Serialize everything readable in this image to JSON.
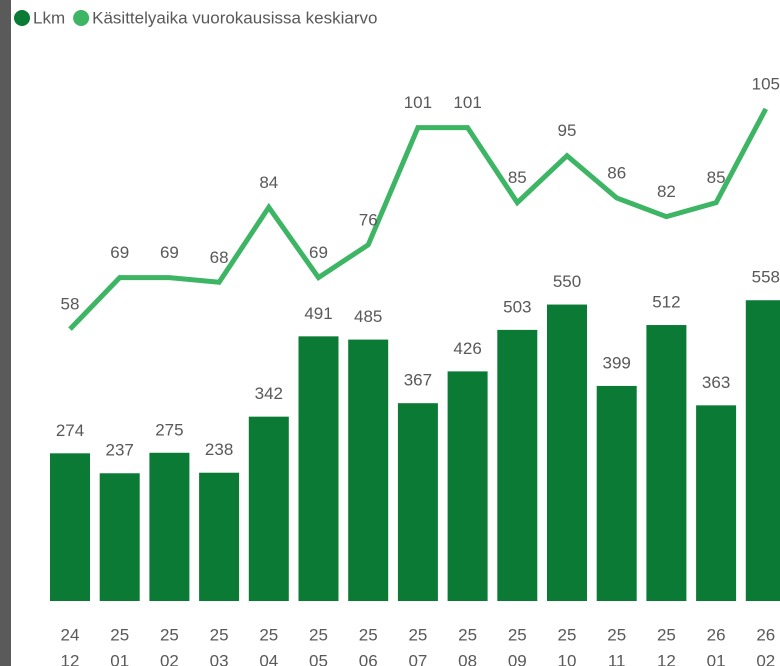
{
  "chart_data": {
    "type": "bar-line",
    "categories": [
      [
        "24",
        "12"
      ],
      [
        "25",
        "01"
      ],
      [
        "25",
        "02"
      ],
      [
        "25",
        "03"
      ],
      [
        "25",
        "04"
      ],
      [
        "25",
        "05"
      ],
      [
        "25",
        "06"
      ],
      [
        "25",
        "07"
      ],
      [
        "25",
        "08"
      ],
      [
        "25",
        "09"
      ],
      [
        "25",
        "10"
      ],
      [
        "25",
        "11"
      ],
      [
        "25",
        "12"
      ],
      [
        "26",
        "01"
      ],
      [
        "26",
        "02"
      ]
    ],
    "series": [
      {
        "name": "Lkm",
        "color": "#0b7a34",
        "type": "bar",
        "values": [
          274,
          237,
          275,
          238,
          342,
          491,
          485,
          367,
          426,
          503,
          550,
          399,
          512,
          363,
          558
        ]
      },
      {
        "name": "Käsittelyaika vuorokausissa keskiarvo",
        "color": "#3db564",
        "type": "line",
        "axis": "y2",
        "values": [
          58,
          69,
          69,
          68,
          84,
          69,
          76,
          101,
          101,
          85,
          95,
          86,
          82,
          85,
          105
        ]
      }
    ],
    "ylim": [
      0,
      1000
    ],
    "y2lim": [
      0,
      115
    ],
    "legend": "top-left"
  }
}
